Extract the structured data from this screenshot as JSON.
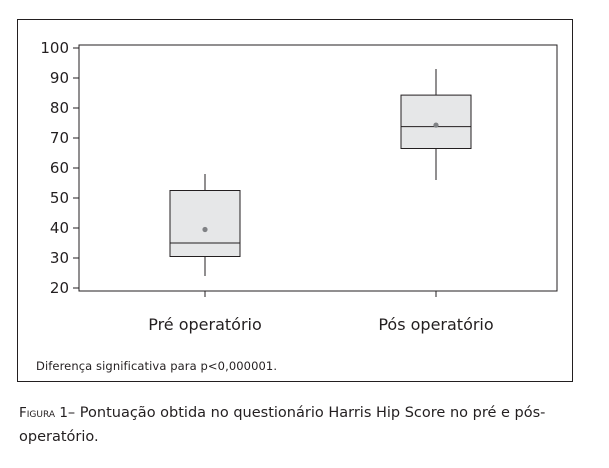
{
  "chart_data": {
    "type": "boxplot",
    "categories": [
      "Pré operatório",
      "Pós operatório"
    ],
    "boxes": [
      {
        "category": "Pré operatório",
        "whisker_low": 24,
        "q1": 30.5,
        "median": 35,
        "q3": 52.5,
        "whisker_high": 58,
        "mean": 39.5
      },
      {
        "category": "Pós operatório",
        "whisker_low": 56,
        "q1": 66.5,
        "median": 73.8,
        "q3": 84.3,
        "whisker_high": 93,
        "mean": 74.3
      }
    ],
    "y_ticks": [
      20,
      30,
      40,
      50,
      60,
      70,
      80,
      90,
      100
    ],
    "ylim": [
      19,
      101
    ],
    "grid": false,
    "box_fill": "#e6e7e8",
    "line_color": "#231f20",
    "mean_color": "#808285"
  },
  "footnote": "Diferença significativa para p<0,000001.",
  "caption": {
    "label": "Figura 1",
    "text": "– Pontuação obtida no questionário Harris Hip Score no pré e pós-operatório."
  }
}
